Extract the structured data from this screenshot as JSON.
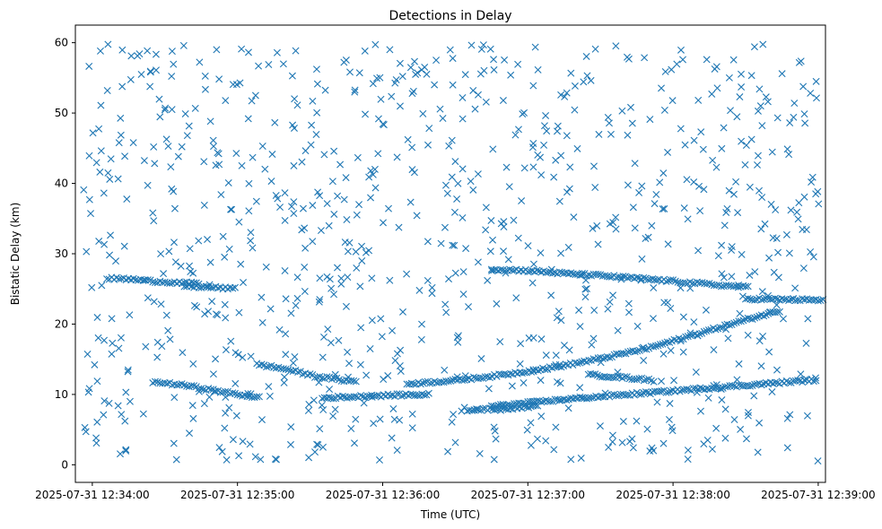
{
  "chart_data": {
    "type": "scatter",
    "title": "Detections in Delay",
    "xlabel": "Time (UTC)",
    "ylabel": "Bistatic Delay (km)",
    "x_ticks": [
      "2025-07-31 12:34:00",
      "2025-07-31 12:35:00",
      "2025-07-31 12:36:00",
      "2025-07-31 12:37:00",
      "2025-07-31 12:38:00",
      "2025-07-31 12:39:00"
    ],
    "y_ticks": [
      "0",
      "10",
      "20",
      "30",
      "40",
      "50",
      "60"
    ],
    "xlim": [
      "2025-07-31 12:33:53",
      "2025-07-31 12:39:03"
    ],
    "ylim": [
      -2.5,
      62.5
    ],
    "grid": false,
    "legend": "none",
    "marker": "x",
    "color": "#1f77b4",
    "series": [
      {
        "tracks": [
          {
            "x": [
              "2025-07-31 12:34:06",
              "2025-07-31 12:34:15",
              "2025-07-31 12:34:25",
              "2025-07-31 12:34:35",
              "2025-07-31 12:34:45"
            ],
            "y": [
              26.5,
              26.4,
              26.1,
              25.9,
              25.7
            ]
          },
          {
            "x": [
              "2025-07-31 12:34:38",
              "2025-07-31 12:34:50",
              "2025-07-31 12:35:00"
            ],
            "y": [
              25.4,
              25.2,
              25.0
            ]
          },
          {
            "x": [
              "2025-07-31 12:34:25",
              "2025-07-31 12:34:38",
              "2025-07-31 12:34:50",
              "2025-07-31 12:35:00",
              "2025-07-31 12:35:10"
            ],
            "y": [
              11.8,
              11.3,
              10.6,
              10.0,
              9.5
            ]
          },
          {
            "x": [
              "2025-07-31 12:35:08",
              "2025-07-31 12:35:20",
              "2025-07-31 12:35:32",
              "2025-07-31 12:35:44",
              "2025-07-31 12:35:50"
            ],
            "y": [
              14.3,
              13.6,
              12.6,
              12.0,
              11.8
            ]
          },
          {
            "x": [
              "2025-07-31 12:35:35",
              "2025-07-31 12:35:50",
              "2025-07-31 12:36:05",
              "2025-07-31 12:36:20"
            ],
            "y": [
              9.5,
              9.7,
              9.9,
              10.0
            ]
          },
          {
            "x": [
              "2025-07-31 12:36:10",
              "2025-07-31 12:36:30",
              "2025-07-31 12:36:50",
              "2025-07-31 12:37:10",
              "2025-07-31 12:37:30",
              "2025-07-31 12:37:50",
              "2025-07-31 12:38:10",
              "2025-07-31 12:38:30",
              "2025-07-31 12:38:45"
            ],
            "y": [
              11.5,
              12.0,
              12.8,
              13.8,
              15.1,
              16.6,
              18.6,
              20.6,
              22.0
            ]
          },
          {
            "x": [
              "2025-07-31 12:36:45",
              "2025-07-31 12:37:00",
              "2025-07-31 12:37:15",
              "2025-07-31 12:37:30",
              "2025-07-31 12:37:45",
              "2025-07-31 12:38:00",
              "2025-07-31 12:38:10",
              "2025-07-31 12:38:20",
              "2025-07-31 12:38:32"
            ],
            "y": [
              27.8,
              27.6,
              27.2,
              26.9,
              26.5,
              26.1,
              25.8,
              25.5,
              25.2
            ]
          },
          {
            "x": [
              "2025-07-31 12:38:30",
              "2025-07-31 12:38:45",
              "2025-07-31 12:39:00",
              "2025-07-31 12:39:03"
            ],
            "y": [
              23.6,
              23.5,
              23.4,
              23.4
            ]
          },
          {
            "x": [
              "2025-07-31 12:36:45",
              "2025-07-31 12:37:00",
              "2025-07-31 12:37:15",
              "2025-07-31 12:37:30",
              "2025-07-31 12:37:45",
              "2025-07-31 12:38:00",
              "2025-07-31 12:38:15",
              "2025-07-31 12:38:30",
              "2025-07-31 12:38:45",
              "2025-07-31 12:39:00"
            ],
            "y": [
              8.3,
              8.8,
              9.3,
              9.7,
              10.1,
              10.5,
              10.9,
              11.3,
              11.7,
              12.1
            ]
          },
          {
            "x": [
              "2025-07-31 12:37:25",
              "2025-07-31 12:37:40",
              "2025-07-31 12:37:52"
            ],
            "y": [
              12.8,
              12.4,
              12.0
            ]
          },
          {
            "x": [
              "2025-07-31 12:36:35",
              "2025-07-31 12:36:50",
              "2025-07-31 12:37:05"
            ],
            "y": [
              7.8,
              8.0,
              8.3
            ]
          }
        ]
      }
    ]
  }
}
